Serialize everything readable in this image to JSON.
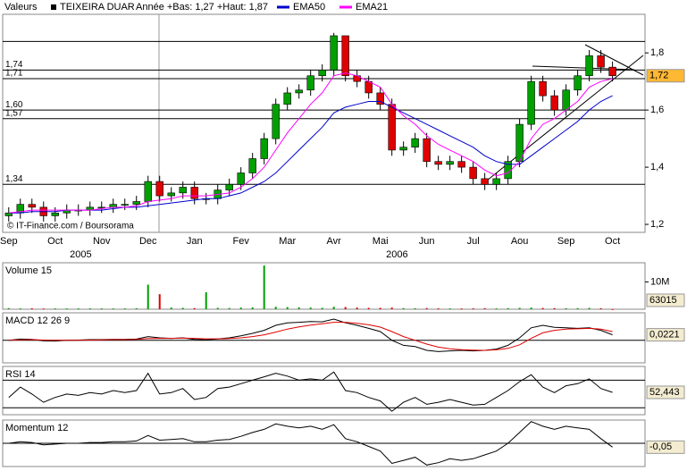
{
  "chart_data": [
    {
      "type": "candlestick",
      "legend_label": "Valeurs",
      "title": "TEIXEIRA DUAR",
      "subtitle": "Année +Bas: 1,27 +Haut: 1,87",
      "source": "© IT-Finance.com / Boursorama",
      "x": [
        0.5,
        0.75,
        1.0,
        1.25,
        1.5,
        1.75,
        2.0,
        2.25,
        2.5,
        2.75,
        3.0,
        3.25,
        3.5,
        3.75,
        4.0,
        4.25,
        4.5,
        4.75,
        5.0,
        5.25,
        5.5,
        5.75,
        6.0,
        6.25,
        6.5,
        6.75,
        7.0,
        7.25,
        7.5,
        7.75,
        8.0,
        8.25,
        8.5,
        8.75,
        9.0,
        9.25,
        9.5,
        9.75,
        10.0,
        10.25,
        10.5,
        10.75,
        11.0,
        11.25,
        11.5,
        11.75,
        12.0,
        12.25,
        12.5,
        12.75,
        13.0,
        13.25,
        13.5
      ],
      "open": [
        1.23,
        1.24,
        1.27,
        1.26,
        1.23,
        1.24,
        1.25,
        1.25,
        1.26,
        1.26,
        1.27,
        1.27,
        1.28,
        1.35,
        1.3,
        1.31,
        1.33,
        1.29,
        1.29,
        1.32,
        1.34,
        1.38,
        1.43,
        1.5,
        1.62,
        1.66,
        1.67,
        1.72,
        1.74,
        1.86,
        1.72,
        1.7,
        1.66,
        1.62,
        1.46,
        1.47,
        1.5,
        1.42,
        1.41,
        1.42,
        1.4,
        1.36,
        1.34,
        1.36,
        1.42,
        1.55,
        1.7,
        1.65,
        1.6,
        1.67,
        1.72,
        1.79,
        1.75
      ],
      "high": [
        1.26,
        1.29,
        1.29,
        1.28,
        1.26,
        1.27,
        1.27,
        1.28,
        1.28,
        1.29,
        1.29,
        1.3,
        1.37,
        1.37,
        1.33,
        1.35,
        1.35,
        1.31,
        1.34,
        1.36,
        1.4,
        1.45,
        1.52,
        1.64,
        1.68,
        1.69,
        1.74,
        1.76,
        1.87,
        1.86,
        1.74,
        1.72,
        1.68,
        1.64,
        1.49,
        1.52,
        1.52,
        1.44,
        1.44,
        1.44,
        1.42,
        1.38,
        1.38,
        1.44,
        1.57,
        1.72,
        1.72,
        1.67,
        1.69,
        1.74,
        1.81,
        1.81,
        1.77
      ],
      "low": [
        1.21,
        1.22,
        1.24,
        1.21,
        1.21,
        1.22,
        1.23,
        1.23,
        1.24,
        1.24,
        1.25,
        1.25,
        1.26,
        1.28,
        1.28,
        1.29,
        1.27,
        1.27,
        1.27,
        1.3,
        1.32,
        1.36,
        1.41,
        1.48,
        1.6,
        1.64,
        1.65,
        1.7,
        1.72,
        1.7,
        1.68,
        1.64,
        1.6,
        1.44,
        1.44,
        1.45,
        1.4,
        1.39,
        1.39,
        1.38,
        1.34,
        1.32,
        1.32,
        1.34,
        1.4,
        1.53,
        1.63,
        1.58,
        1.58,
        1.65,
        1.7,
        1.73,
        1.7
      ],
      "close": [
        1.24,
        1.27,
        1.26,
        1.23,
        1.24,
        1.25,
        1.25,
        1.26,
        1.26,
        1.27,
        1.27,
        1.28,
        1.35,
        1.3,
        1.31,
        1.33,
        1.29,
        1.29,
        1.32,
        1.34,
        1.38,
        1.43,
        1.5,
        1.62,
        1.66,
        1.67,
        1.72,
        1.74,
        1.86,
        1.72,
        1.7,
        1.66,
        1.62,
        1.46,
        1.47,
        1.5,
        1.42,
        1.41,
        1.42,
        1.4,
        1.36,
        1.34,
        1.36,
        1.42,
        1.55,
        1.7,
        1.65,
        1.6,
        1.67,
        1.72,
        1.79,
        1.75,
        1.72
      ],
      "up_color": "#00a000",
      "down_color": "#e00000",
      "series": [
        {
          "name": "EMA50",
          "color": "#0000cc",
          "values": [
            1.24,
            1.24,
            1.245,
            1.245,
            1.245,
            1.25,
            1.25,
            1.25,
            1.25,
            1.255,
            1.26,
            1.26,
            1.265,
            1.27,
            1.275,
            1.28,
            1.285,
            1.29,
            1.29,
            1.3,
            1.31,
            1.33,
            1.35,
            1.38,
            1.42,
            1.46,
            1.5,
            1.54,
            1.59,
            1.61,
            1.62,
            1.63,
            1.63,
            1.61,
            1.59,
            1.57,
            1.55,
            1.53,
            1.51,
            1.49,
            1.47,
            1.44,
            1.42,
            1.41,
            1.41,
            1.44,
            1.47,
            1.5,
            1.53,
            1.56,
            1.6,
            1.63,
            1.65
          ]
        },
        {
          "name": "EMA21",
          "color": "#ff00ff",
          "values": [
            1.24,
            1.245,
            1.25,
            1.25,
            1.25,
            1.25,
            1.25,
            1.25,
            1.255,
            1.26,
            1.26,
            1.265,
            1.28,
            1.285,
            1.29,
            1.3,
            1.3,
            1.3,
            1.305,
            1.31,
            1.33,
            1.36,
            1.4,
            1.46,
            1.52,
            1.57,
            1.62,
            1.66,
            1.72,
            1.73,
            1.72,
            1.7,
            1.68,
            1.62,
            1.58,
            1.55,
            1.51,
            1.48,
            1.46,
            1.44,
            1.42,
            1.39,
            1.37,
            1.38,
            1.42,
            1.5,
            1.55,
            1.57,
            1.6,
            1.63,
            1.68,
            1.7,
            1.71
          ]
        }
      ],
      "xlim": [
        0.37,
        14.2
      ],
      "xticks": [
        {
          "value": 0.5,
          "label": "Sep"
        },
        {
          "value": 1.5,
          "label": "Oct"
        },
        {
          "value": 2.5,
          "label": "Nov"
        },
        {
          "value": 3.5,
          "label": "Dec"
        },
        {
          "value": 4.5,
          "label": "Jan"
        },
        {
          "value": 5.5,
          "label": "Fev"
        },
        {
          "value": 6.5,
          "label": "Mar"
        },
        {
          "value": 7.5,
          "label": "Avr"
        },
        {
          "value": 8.5,
          "label": "Mai"
        },
        {
          "value": 9.5,
          "label": "Jun"
        },
        {
          "value": 10.5,
          "label": "Jul"
        },
        {
          "value": 11.5,
          "label": "Aou"
        },
        {
          "value": 12.5,
          "label": "Sep"
        },
        {
          "value": 13.5,
          "label": "Oct"
        }
      ],
      "year_labels": [
        {
          "value": 2.05,
          "label": "2005"
        },
        {
          "value": 8.86,
          "label": "2006"
        }
      ],
      "ylim": [
        1.172,
        1.935
      ],
      "yticks": [
        {
          "value": 1.2,
          "label": "1,2"
        },
        {
          "value": 1.4,
          "label": "1,4"
        },
        {
          "value": 1.6,
          "label": "1,6"
        },
        {
          "value": 1.8,
          "label": "1,8"
        }
      ],
      "levels": [
        1.84,
        {
          "value": 1.74,
          "label": "1,74"
        },
        {
          "value": 1.71,
          "label": "1,71"
        },
        {
          "value": 1.6,
          "label": "1,60"
        },
        {
          "value": 1.57,
          "label": "1,57"
        },
        {
          "value": 1.34,
          "label": "1,34"
        }
      ],
      "last_label": {
        "value": 1.72,
        "label": "1,72"
      }
    },
    {
      "type": "bar",
      "title": "Volume 15",
      "series": [
        {
          "values": [
            400000,
            300000,
            350000,
            250000,
            300000,
            280000,
            300000,
            320000,
            300000,
            280000,
            300000,
            350000,
            9000000,
            5500000,
            600000,
            500000,
            400000,
            6200000,
            500000,
            450000,
            600000,
            700000,
            16000000,
            900000,
            800000,
            700000,
            600000,
            500000,
            900000,
            800000,
            600000,
            500000,
            500000,
            600000,
            400000,
            350000,
            400000,
            300000,
            300000,
            280000,
            300000,
            350000,
            300000,
            400000,
            500000,
            600000,
            450000,
            400000,
            350000,
            400000,
            500000,
            350000,
            63015
          ]
        }
      ],
      "ylim": [
        0,
        17000000
      ],
      "yticks": [
        {
          "value": 10000000,
          "label": "10M"
        }
      ]
    },
    {
      "type": "line",
      "title": "MACD 12 26 9",
      "series": [
        {
          "color": "#000000",
          "values": [
            0.0,
            0.005,
            0.004,
            -0.002,
            -0.003,
            0.0,
            0.001,
            0.003,
            0.003,
            0.004,
            0.004,
            0.005,
            0.015,
            0.01,
            0.008,
            0.01,
            0.004,
            0.002,
            0.006,
            0.01,
            0.018,
            0.028,
            0.04,
            0.06,
            0.07,
            0.072,
            0.075,
            0.074,
            0.085,
            0.07,
            0.06,
            0.048,
            0.035,
            0.0,
            -0.02,
            -0.025,
            -0.04,
            -0.045,
            -0.042,
            -0.04,
            -0.042,
            -0.04,
            -0.035,
            -0.02,
            0.01,
            0.05,
            0.06,
            0.052,
            0.05,
            0.048,
            0.05,
            0.04,
            0.0221
          ]
        },
        {
          "color": "#e00000",
          "values": [
            0.0,
            0.002,
            0.003,
            0.001,
            0.0,
            0.0,
            0.0,
            0.001,
            0.002,
            0.003,
            0.003,
            0.004,
            0.007,
            0.008,
            0.008,
            0.009,
            0.008,
            0.006,
            0.006,
            0.007,
            0.01,
            0.015,
            0.022,
            0.033,
            0.045,
            0.054,
            0.061,
            0.066,
            0.072,
            0.072,
            0.068,
            0.062,
            0.053,
            0.035,
            0.015,
            0.0,
            -0.015,
            -0.027,
            -0.034,
            -0.037,
            -0.039,
            -0.04,
            -0.038,
            -0.032,
            -0.018,
            0.008,
            0.03,
            0.04,
            0.045,
            0.046,
            0.048,
            0.045,
            0.035
          ]
        }
      ],
      "ylim": [
        -0.09,
        0.11
      ],
      "levels": [
        0
      ],
      "last_label": {
        "value": 0.0221,
        "label": "0,0221"
      }
    },
    {
      "type": "line",
      "title": "RSI 14",
      "series": [
        {
          "color": "#000000",
          "values": [
            45,
            60,
            50,
            38,
            45,
            50,
            48,
            52,
            50,
            55,
            52,
            55,
            80,
            50,
            52,
            58,
            42,
            45,
            58,
            60,
            65,
            70,
            75,
            80,
            76,
            70,
            72,
            70,
            82,
            55,
            52,
            45,
            40,
            25,
            38,
            45,
            35,
            38,
            42,
            38,
            34,
            35,
            45,
            55,
            68,
            78,
            60,
            52,
            62,
            65,
            72,
            58,
            52.443
          ]
        }
      ],
      "ylim": [
        20,
        90
      ],
      "levels": [
        70,
        30
      ],
      "last_label": {
        "value": 52.443,
        "label": "52,443"
      }
    },
    {
      "type": "line",
      "title": "Momentum 12",
      "series": [
        {
          "color": "#000000",
          "values": [
            0,
            0.02,
            0.01,
            -0.02,
            -0.01,
            0,
            0,
            0.01,
            0.01,
            0.02,
            0.02,
            0.03,
            0.1,
            0.04,
            0.05,
            0.06,
            0.02,
            0.02,
            0.04,
            0.05,
            0.09,
            0.14,
            0.18,
            0.25,
            0.22,
            0.2,
            0.22,
            0.18,
            0.24,
            0.06,
            0.02,
            -0.04,
            -0.1,
            -0.26,
            -0.22,
            -0.18,
            -0.28,
            -0.25,
            -0.2,
            -0.22,
            -0.2,
            -0.15,
            -0.1,
            0.0,
            0.14,
            0.28,
            0.22,
            0.18,
            0.22,
            0.2,
            0.18,
            0.06,
            -0.05
          ]
        }
      ],
      "ylim": [
        -0.3,
        0.3
      ],
      "levels": [
        0
      ],
      "last_label": {
        "value": -0.05,
        "label": "-0,05"
      }
    }
  ]
}
